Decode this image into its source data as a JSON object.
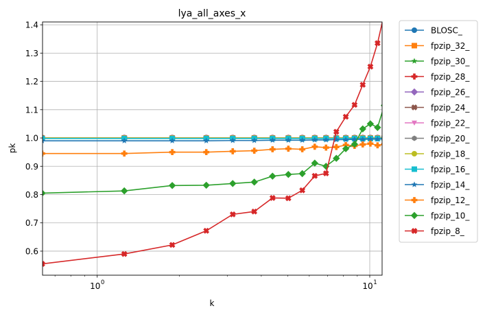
{
  "chart_data": {
    "type": "line",
    "title": "lya_all_axes_x",
    "xlabel": "k",
    "ylabel": "pk",
    "xscale": "log",
    "xlim": [
      0.63,
      11.1
    ],
    "ylim": [
      0.515,
      1.41
    ],
    "grid": true,
    "legend_position": "outside-right",
    "x_ticks": [
      {
        "value": 1,
        "label": "10",
        "exp": "0"
      },
      {
        "value": 10,
        "label": "10",
        "exp": "1"
      }
    ],
    "y_ticks": [
      {
        "value": 0.6,
        "label": "0.6"
      },
      {
        "value": 0.7,
        "label": "0.7"
      },
      {
        "value": 0.8,
        "label": "0.8"
      },
      {
        "value": 0.9,
        "label": "0.9"
      },
      {
        "value": 1.0,
        "label": "1.0"
      },
      {
        "value": 1.1,
        "label": "1.1"
      },
      {
        "value": 1.2,
        "label": "1.2"
      },
      {
        "value": 1.3,
        "label": "1.3"
      },
      {
        "value": 1.4,
        "label": "1.4"
      }
    ],
    "x": [
      0.628,
      1.257,
      1.885,
      2.513,
      3.142,
      3.77,
      4.398,
      5.027,
      5.655,
      6.283,
      6.912,
      7.54,
      8.168,
      8.796,
      9.425,
      10.053,
      10.681,
      11.31
    ],
    "series": [
      {
        "name": "BLOSC_",
        "color": "#1f77b4",
        "marker": "circle",
        "values": [
          1.0,
          1.0,
          1.0,
          1.0,
          1.0,
          1.0,
          1.0,
          1.0,
          1.0,
          1.0,
          1.0,
          1.0,
          1.0,
          1.0,
          1.0,
          1.0,
          1.0,
          1.0
        ]
      },
      {
        "name": "fpzip_32_",
        "color": "#ff7f0e",
        "marker": "square",
        "values": [
          1.0,
          1.0,
          1.0,
          1.0,
          1.0,
          1.0,
          1.0,
          1.0,
          1.0,
          1.0,
          1.0,
          1.0,
          1.0,
          1.0,
          1.0,
          1.0,
          1.0,
          1.0
        ]
      },
      {
        "name": "fpzip_30_",
        "color": "#2ca02c",
        "marker": "star",
        "values": [
          1.0,
          1.0,
          1.0,
          1.0,
          1.0,
          1.0,
          1.0,
          1.0,
          1.0,
          1.0,
          1.0,
          1.0,
          1.0,
          1.0,
          1.0,
          1.0,
          1.0,
          1.0
        ]
      },
      {
        "name": "fpzip_28_",
        "color": "#d62728",
        "marker": "plus",
        "values": [
          1.0,
          1.0,
          1.0,
          1.0,
          1.0,
          1.0,
          1.0,
          1.0,
          1.0,
          1.0,
          1.0,
          1.0,
          1.0,
          1.0,
          1.0,
          1.0,
          1.0,
          1.0
        ]
      },
      {
        "name": "fpzip_26_",
        "color": "#9467bd",
        "marker": "diamond",
        "values": [
          1.0,
          1.0,
          1.0,
          1.0,
          1.0,
          1.0,
          1.0,
          1.0,
          1.0,
          1.0,
          1.0,
          1.0,
          1.0,
          1.0,
          1.0,
          1.0,
          1.0,
          1.0
        ]
      },
      {
        "name": "fpzip_24_",
        "color": "#8c564b",
        "marker": "x",
        "values": [
          1.0,
          1.0,
          1.0,
          1.0,
          1.0,
          1.0,
          1.0,
          1.0,
          1.0,
          1.0,
          1.0,
          1.0,
          1.0,
          1.0,
          1.0,
          1.0,
          1.0,
          1.0
        ]
      },
      {
        "name": "fpzip_22_",
        "color": "#e377c2",
        "marker": "triangle-down",
        "values": [
          1.0,
          1.0,
          1.0,
          1.0,
          1.0,
          1.0,
          1.0,
          1.0,
          1.0,
          1.0,
          1.0,
          1.0,
          1.0,
          1.0,
          1.0,
          1.0,
          1.0,
          1.0
        ]
      },
      {
        "name": "fpzip_20_",
        "color": "#7f7f7f",
        "marker": "hexagon",
        "values": [
          1.0,
          1.0,
          1.0,
          1.0,
          1.0,
          1.0,
          1.0,
          1.0,
          1.0,
          1.0,
          1.0,
          1.0,
          1.0,
          1.0,
          1.0,
          1.0,
          1.0,
          1.0
        ]
      },
      {
        "name": "fpzip_18_",
        "color": "#bcbd22",
        "marker": "circle",
        "values": [
          1.0,
          1.0,
          1.0,
          1.0,
          1.0,
          1.0,
          1.0,
          1.0,
          1.0,
          1.0,
          1.0,
          1.0,
          1.0,
          1.0,
          1.0,
          1.0,
          1.0,
          1.0
        ]
      },
      {
        "name": "fpzip_16_",
        "color": "#17becf",
        "marker": "square",
        "values": [
          0.998,
          0.998,
          0.998,
          0.998,
          0.998,
          0.998,
          0.998,
          0.998,
          0.998,
          0.998,
          0.998,
          0.998,
          0.998,
          0.998,
          0.998,
          0.998,
          0.998,
          0.998
        ]
      },
      {
        "name": "fpzip_14_",
        "color": "#1f77b4",
        "marker": "star",
        "values": [
          0.99,
          0.99,
          0.99,
          0.99,
          0.991,
          0.991,
          0.992,
          0.992,
          0.992,
          0.993,
          0.993,
          0.994,
          0.994,
          0.995,
          0.995,
          0.996,
          0.996,
          0.997
        ]
      },
      {
        "name": "fpzip_12_",
        "color": "#ff7f0e",
        "marker": "plus",
        "values": [
          0.945,
          0.945,
          0.95,
          0.95,
          0.953,
          0.955,
          0.96,
          0.962,
          0.96,
          0.969,
          0.966,
          0.968,
          0.975,
          0.972,
          0.977,
          0.98,
          0.974,
          0.978
        ]
      },
      {
        "name": "fpzip_10_",
        "color": "#2ca02c",
        "marker": "diamond",
        "values": [
          0.805,
          0.813,
          0.832,
          0.833,
          0.839,
          0.844,
          0.865,
          0.871,
          0.874,
          0.911,
          0.9,
          0.928,
          0.962,
          0.978,
          1.032,
          1.05,
          1.037,
          1.115
        ]
      },
      {
        "name": "fpzip_8_",
        "color": "#d62728",
        "marker": "x",
        "values": [
          0.555,
          0.59,
          0.622,
          0.672,
          0.73,
          0.74,
          0.788,
          0.787,
          0.815,
          0.866,
          0.875,
          1.022,
          1.075,
          1.117,
          1.188,
          1.252,
          1.335,
          1.44
        ]
      }
    ]
  }
}
